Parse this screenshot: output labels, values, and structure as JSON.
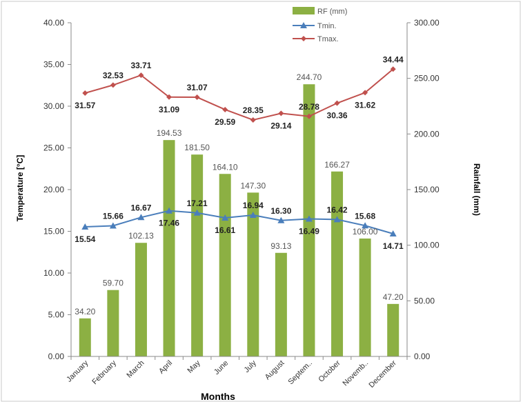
{
  "chart_data": {
    "type": "bar",
    "categories": [
      "January",
      "February",
      "March",
      "April",
      "May",
      "June",
      "July",
      "August",
      "Septem..",
      "October",
      "Novemb..",
      "December"
    ],
    "xlabel": "Months",
    "ylabel": "Temperature [°C]",
    "y2label": "Rainfall (mm)",
    "ylim": [
      0,
      40
    ],
    "y2lim": [
      0,
      300
    ],
    "yticks": [
      "0.00",
      "5.00",
      "10.00",
      "15.00",
      "20.00",
      "25.00",
      "30.00",
      "35.00",
      "40.00"
    ],
    "y2ticks": [
      "0.00",
      "50.00",
      "100.00",
      "150.00",
      "200.00",
      "250.00",
      "300.00"
    ],
    "grid": false,
    "legend_position": "top-right",
    "series": [
      {
        "name": "RF (mm)",
        "kind": "bar",
        "axis": "right",
        "color": "#8cb043",
        "values": [
          34.2,
          59.7,
          102.13,
          194.53,
          181.5,
          164.1,
          147.3,
          93.13,
          244.7,
          166.27,
          106.0,
          47.2
        ],
        "labels": [
          "34.20",
          "59.70",
          "102.13",
          "194.53",
          "181.50",
          "164.10",
          "147.30",
          "93.13",
          "244.70",
          "166.27",
          "106.00",
          "47.20"
        ]
      },
      {
        "name": "Tmin.",
        "kind": "line",
        "axis": "left",
        "color": "#4a7ebb",
        "marker": "triangle",
        "values": [
          15.54,
          15.66,
          16.67,
          17.46,
          17.21,
          16.61,
          16.94,
          16.3,
          16.49,
          16.42,
          15.68,
          14.71
        ],
        "labels": [
          "15.54",
          "15.66",
          "16.67",
          "17.46",
          "17.21",
          "16.61",
          "16.94",
          "16.30",
          "16.49",
          "16.42",
          "15.68",
          "14.71"
        ]
      },
      {
        "name": "Tmax.",
        "kind": "line",
        "axis": "left",
        "color": "#c0504d",
        "marker": "diamond",
        "values": [
          31.57,
          32.53,
          33.71,
          31.09,
          31.07,
          29.59,
          28.35,
          29.14,
          28.78,
          30.36,
          31.62,
          34.44
        ],
        "labels": [
          "31.57",
          "32.53",
          "33.71",
          "31.09",
          "31.07",
          "29.59",
          "28.35",
          "29.14",
          "28.78",
          "30.36",
          "31.62",
          "34.44"
        ]
      }
    ]
  }
}
